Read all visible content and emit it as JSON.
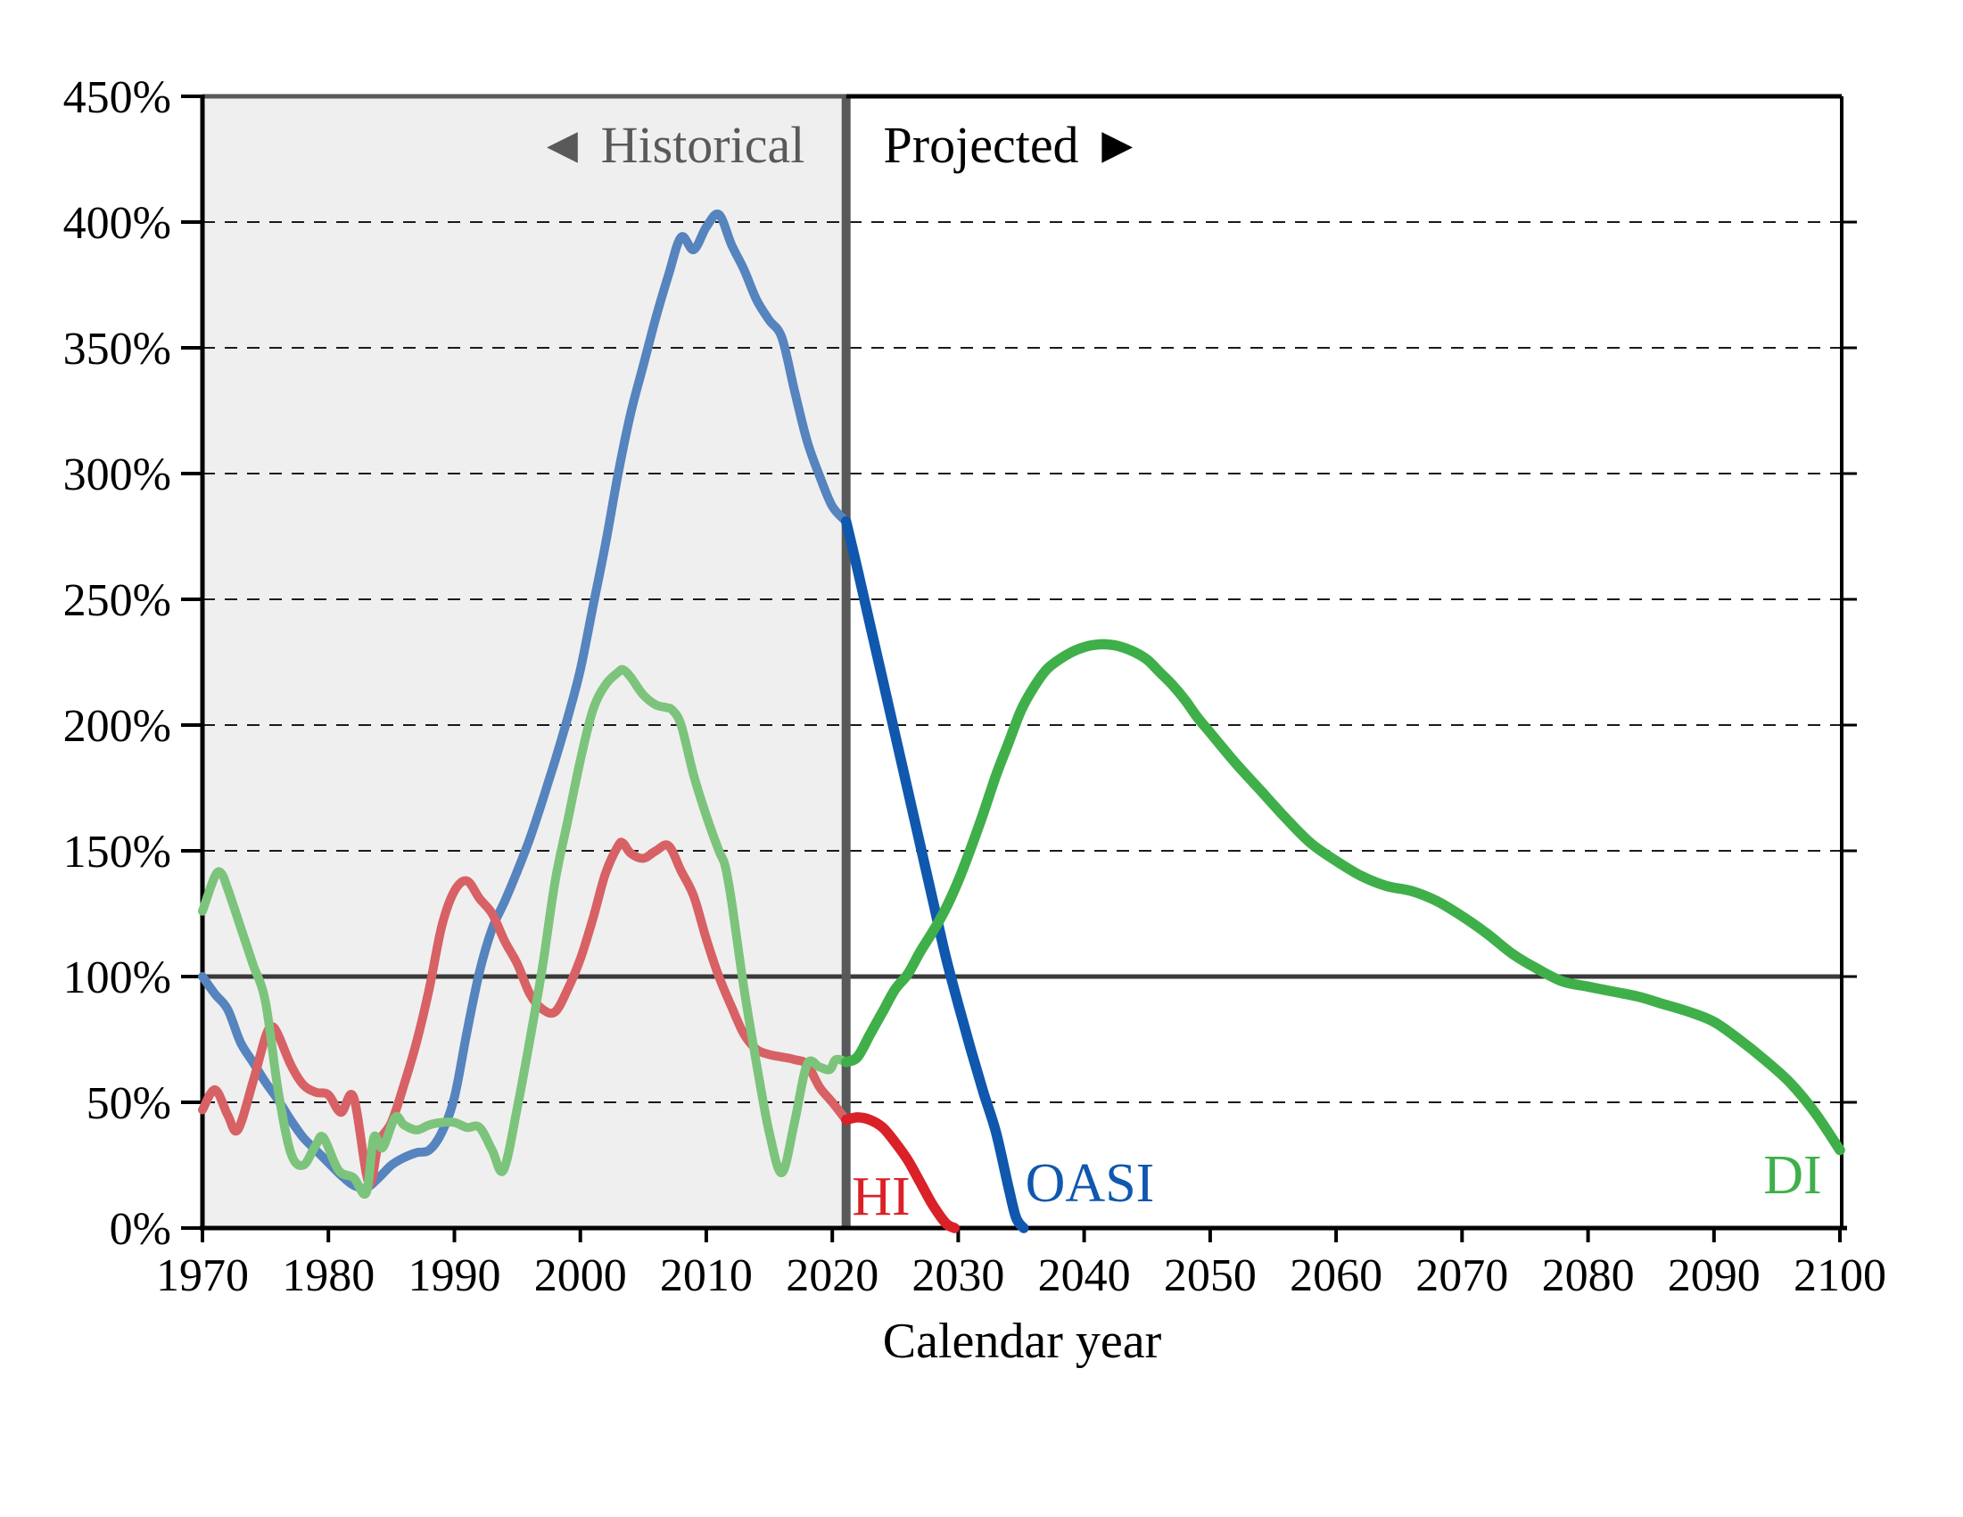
{
  "chart_data": {
    "type": "line",
    "title": "",
    "xlabel": "Calendar year",
    "ylabel": "",
    "x_range": [
      1970,
      2100.14
    ],
    "y_range": [
      0,
      450
    ],
    "x_ticks": [
      1970,
      1980,
      1990,
      2000,
      2010,
      2020,
      2030,
      2040,
      2050,
      2060,
      2070,
      2080,
      2090,
      2100
    ],
    "x_tick_labels": [
      "1970",
      "1980",
      "1990",
      "2000",
      "2010",
      "2020",
      "2030",
      "2040",
      "2050",
      "2060",
      "2070",
      "2080",
      "2090",
      "2100"
    ],
    "y_ticks": [
      0,
      50,
      100,
      150,
      200,
      250,
      300,
      350,
      400,
      450
    ],
    "y_tick_labels": [
      "0%",
      "50%",
      "100%",
      "150%",
      "200%",
      "250%",
      "300%",
      "350%",
      "400%",
      "450%"
    ],
    "gridlines_dashed": [
      50,
      150,
      200,
      250,
      300,
      350,
      400
    ],
    "gridlines_solid": [
      100
    ],
    "boundary_year": 2021.1,
    "region_labels": {
      "historical": "◄ Historical",
      "projected": "Projected ►"
    },
    "colors": {
      "historical_oasi": "#5584BE",
      "projected_oasi": "#1057AE",
      "historical_di": "#7CC47C",
      "projected_di": "#3FAF4A",
      "historical_hi": "#D76164",
      "projected_hi": "#DA2128",
      "shade": "#F0EFEF",
      "divider": "#58595B",
      "grid": "#1A1A1A",
      "ref_line": "#3A3A3A",
      "frame": "#000000",
      "historical_frame": "#595959",
      "historical_text": "#595959",
      "projected_text": "#000000"
    },
    "series": [
      {
        "name": "OASI-historical",
        "fund": "OASI",
        "segment": "historical",
        "color_key": "historical_oasi",
        "width": 10,
        "points": [
          [
            1970,
            100
          ],
          [
            1971,
            93
          ],
          [
            1972,
            87
          ],
          [
            1973,
            74
          ],
          [
            1974,
            66
          ],
          [
            1975,
            58
          ],
          [
            1976,
            51
          ],
          [
            1977,
            43
          ],
          [
            1978,
            36
          ],
          [
            1979,
            31
          ],
          [
            1980,
            26
          ],
          [
            1981,
            21
          ],
          [
            1982,
            17
          ],
          [
            1983,
            16
          ],
          [
            1984,
            20
          ],
          [
            1985,
            25
          ],
          [
            1986,
            28
          ],
          [
            1987,
            30
          ],
          [
            1988,
            31
          ],
          [
            1989,
            38
          ],
          [
            1990,
            52
          ],
          [
            1991,
            78
          ],
          [
            1992,
            102
          ],
          [
            1993,
            119
          ],
          [
            1994,
            130
          ],
          [
            1995,
            142
          ],
          [
            1996,
            155
          ],
          [
            1997,
            170
          ],
          [
            1998,
            186
          ],
          [
            1999,
            203
          ],
          [
            2000,
            222
          ],
          [
            2001,
            247
          ],
          [
            2002,
            272
          ],
          [
            2003,
            300
          ],
          [
            2004,
            324
          ],
          [
            2005,
            343
          ],
          [
            2006,
            362
          ],
          [
            2007,
            379
          ],
          [
            2008,
            394
          ],
          [
            2009,
            389
          ],
          [
            2010,
            398
          ],
          [
            2011,
            403
          ],
          [
            2012,
            391
          ],
          [
            2013,
            381
          ],
          [
            2014,
            369
          ],
          [
            2015,
            361
          ],
          [
            2016,
            354
          ],
          [
            2017,
            333
          ],
          [
            2018,
            313
          ],
          [
            2019,
            299
          ],
          [
            2020,
            287
          ],
          [
            2021.1,
            281
          ]
        ]
      },
      {
        "name": "HI-historical",
        "fund": "HI",
        "segment": "historical",
        "color_key": "historical_hi",
        "width": 10,
        "points": [
          [
            1970,
            47
          ],
          [
            1971,
            55
          ],
          [
            1972,
            45
          ],
          [
            1972.8,
            39
          ],
          [
            1974,
            58
          ],
          [
            1975,
            76
          ],
          [
            1975.5,
            80
          ],
          [
            1976,
            77
          ],
          [
            1977,
            65
          ],
          [
            1978,
            57
          ],
          [
            1979,
            54
          ],
          [
            1980,
            53
          ],
          [
            1981,
            46
          ],
          [
            1982,
            52
          ],
          [
            1983.2,
            18
          ],
          [
            1984,
            34
          ],
          [
            1985,
            42
          ],
          [
            1986,
            57
          ],
          [
            1987,
            74
          ],
          [
            1988,
            95
          ],
          [
            1989,
            120
          ],
          [
            1990,
            134
          ],
          [
            1991,
            138
          ],
          [
            1992,
            131
          ],
          [
            1993,
            125
          ],
          [
            1994,
            114
          ],
          [
            1995,
            105
          ],
          [
            1996,
            93
          ],
          [
            1997,
            87
          ],
          [
            1998,
            86
          ],
          [
            1999,
            95
          ],
          [
            2000,
            107
          ],
          [
            2001,
            123
          ],
          [
            2002,
            141
          ],
          [
            2003,
            152
          ],
          [
            2003.4,
            153
          ],
          [
            2004,
            149
          ],
          [
            2005,
            147
          ],
          [
            2006,
            150
          ],
          [
            2007,
            152
          ],
          [
            2008,
            142
          ],
          [
            2009,
            132
          ],
          [
            2010,
            115
          ],
          [
            2011,
            100
          ],
          [
            2012,
            88
          ],
          [
            2013,
            77
          ],
          [
            2014,
            71
          ],
          [
            2015,
            69
          ],
          [
            2016,
            68
          ],
          [
            2017,
            67
          ],
          [
            2018,
            65
          ],
          [
            2019,
            56
          ],
          [
            2020,
            50
          ],
          [
            2021.1,
            43
          ]
        ]
      },
      {
        "name": "DI-historical",
        "fund": "DI",
        "segment": "historical",
        "color_key": "historical_di",
        "width": 10,
        "points": [
          [
            1970,
            126
          ],
          [
            1971,
            140
          ],
          [
            1971.5,
            141
          ],
          [
            1972,
            135
          ],
          [
            1973,
            120
          ],
          [
            1974,
            105
          ],
          [
            1975,
            90
          ],
          [
            1976,
            55
          ],
          [
            1977,
            30
          ],
          [
            1978,
            25
          ],
          [
            1979,
            33
          ],
          [
            1979.6,
            36
          ],
          [
            1980.8,
            23
          ],
          [
            1982,
            20
          ],
          [
            1983,
            14
          ],
          [
            1983.6,
            36
          ],
          [
            1984.3,
            32
          ],
          [
            1985.3,
            44
          ],
          [
            1986,
            41
          ],
          [
            1987,
            39
          ],
          [
            1988,
            41
          ],
          [
            1989,
            42
          ],
          [
            1990,
            42
          ],
          [
            1991,
            40
          ],
          [
            1992,
            40
          ],
          [
            1993,
            31
          ],
          [
            1993.9,
            23
          ],
          [
            1995,
            48
          ],
          [
            1996,
            75
          ],
          [
            1997,
            104
          ],
          [
            1998,
            138
          ],
          [
            1999,
            162
          ],
          [
            2000,
            186
          ],
          [
            2001,
            206
          ],
          [
            2002,
            216
          ],
          [
            2003,
            221
          ],
          [
            2003.4,
            222
          ],
          [
            2004,
            219
          ],
          [
            2005,
            212
          ],
          [
            2006,
            208
          ],
          [
            2006.8,
            207
          ],
          [
            2007.3,
            206
          ],
          [
            2008,
            200
          ],
          [
            2009,
            180
          ],
          [
            2010,
            164
          ],
          [
            2011,
            150
          ],
          [
            2011.5,
            144
          ],
          [
            2012,
            130
          ],
          [
            2013,
            95
          ],
          [
            2014,
            65
          ],
          [
            2015,
            38
          ],
          [
            2016,
            22
          ],
          [
            2017,
            42
          ],
          [
            2018,
            65
          ],
          [
            2019,
            64
          ],
          [
            2019.8,
            63
          ],
          [
            2020.3,
            67
          ],
          [
            2021.1,
            66
          ]
        ]
      },
      {
        "name": "HI-projected",
        "fund": "HI",
        "segment": "projected",
        "color_key": "projected_hi",
        "width": 11.5,
        "points": [
          [
            2021.1,
            43
          ],
          [
            2022,
            44
          ],
          [
            2023,
            43
          ],
          [
            2024,
            40
          ],
          [
            2025,
            34
          ],
          [
            2026,
            27
          ],
          [
            2027,
            18
          ],
          [
            2028,
            9
          ],
          [
            2029,
            2
          ],
          [
            2029.7,
            0
          ]
        ]
      },
      {
        "name": "OASI-projected",
        "fund": "OASI",
        "segment": "projected",
        "color_key": "projected_oasi",
        "width": 11.5,
        "points": [
          [
            2021.1,
            281
          ],
          [
            2022,
            262
          ],
          [
            2023,
            240
          ],
          [
            2024,
            218
          ],
          [
            2025,
            196
          ],
          [
            2026,
            174
          ],
          [
            2027,
            152
          ],
          [
            2028,
            130
          ],
          [
            2029,
            108
          ],
          [
            2030,
            89
          ],
          [
            2031,
            71
          ],
          [
            2032,
            54
          ],
          [
            2033,
            38
          ],
          [
            2034,
            16
          ],
          [
            2034.6,
            4
          ],
          [
            2035.2,
            0
          ]
        ]
      },
      {
        "name": "DI-projected",
        "fund": "DI",
        "segment": "projected",
        "color_key": "projected_di",
        "width": 11.5,
        "points": [
          [
            2021.1,
            66
          ],
          [
            2022,
            68
          ],
          [
            2023,
            77
          ],
          [
            2024,
            86
          ],
          [
            2025,
            95
          ],
          [
            2026,
            101
          ],
          [
            2027,
            110
          ],
          [
            2028,
            118
          ],
          [
            2029,
            127
          ],
          [
            2030,
            138
          ],
          [
            2031,
            151
          ],
          [
            2032,
            165
          ],
          [
            2033,
            180
          ],
          [
            2034,
            193
          ],
          [
            2035,
            206
          ],
          [
            2036,
            215
          ],
          [
            2037,
            222
          ],
          [
            2038,
            226
          ],
          [
            2039,
            229
          ],
          [
            2040,
            231
          ],
          [
            2041,
            232
          ],
          [
            2042,
            232
          ],
          [
            2043,
            231
          ],
          [
            2044,
            229
          ],
          [
            2045,
            226
          ],
          [
            2046,
            221
          ],
          [
            2047,
            216
          ],
          [
            2048,
            210
          ],
          [
            2049,
            203
          ],
          [
            2050,
            197
          ],
          [
            2052,
            185
          ],
          [
            2054,
            174
          ],
          [
            2056,
            163
          ],
          [
            2058,
            153
          ],
          [
            2060,
            146
          ],
          [
            2062,
            140
          ],
          [
            2064,
            136
          ],
          [
            2066,
            134
          ],
          [
            2068,
            130
          ],
          [
            2070,
            124
          ],
          [
            2072,
            117
          ],
          [
            2074,
            109
          ],
          [
            2076,
            103
          ],
          [
            2078,
            98
          ],
          [
            2080,
            96
          ],
          [
            2082,
            94
          ],
          [
            2084,
            92
          ],
          [
            2086,
            89
          ],
          [
            2088,
            86
          ],
          [
            2090,
            82
          ],
          [
            2092,
            75
          ],
          [
            2094,
            67
          ],
          [
            2096,
            58
          ],
          [
            2098,
            46
          ],
          [
            2100,
            31
          ]
        ]
      }
    ],
    "annotations": [
      {
        "text": "HI",
        "color_key": "projected_hi"
      },
      {
        "text": "OASI",
        "color_key": "projected_oasi"
      },
      {
        "text": "DI",
        "color_key": "projected_di"
      }
    ]
  }
}
